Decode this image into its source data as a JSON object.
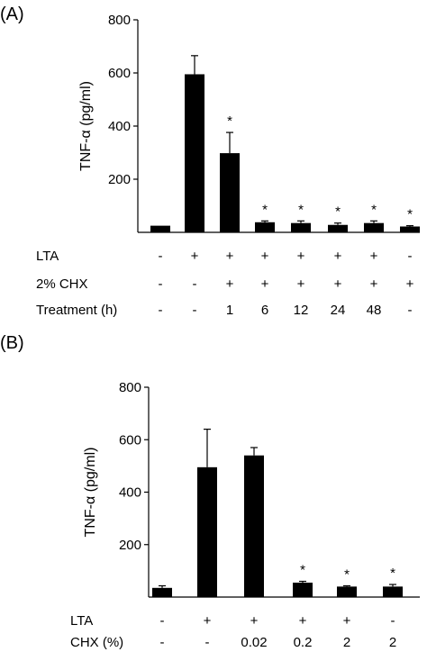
{
  "chart_data": [
    {
      "type": "bar",
      "panel_label": "(A)",
      "ylabel": "TNF-α (pg/ml)",
      "ylim": [
        0,
        800
      ],
      "yticks": [
        200,
        400,
        600,
        800
      ],
      "values": [
        25,
        595,
        298,
        38,
        35,
        28,
        35,
        22
      ],
      "errors": [
        0,
        70,
        78,
        5,
        8,
        7,
        8,
        3
      ],
      "significant": [
        false,
        false,
        true,
        true,
        true,
        true,
        true,
        true
      ],
      "significance_marker": "*",
      "rows": [
        {
          "label": "LTA",
          "cells": [
            "-",
            "+",
            "+",
            "+",
            "+",
            "+",
            "+",
            "-"
          ]
        },
        {
          "label": "2% CHX",
          "cells": [
            "-",
            "-",
            "+",
            "+",
            "+",
            "+",
            "+",
            "+"
          ]
        },
        {
          "label": "Treatment (h)",
          "cells": [
            "-",
            "-",
            "1",
            "6",
            "12",
            "24",
            "48",
            "-"
          ]
        }
      ]
    },
    {
      "type": "bar",
      "panel_label": "(B)",
      "ylabel": "TNF-α (pg/ml)",
      "ylim": [
        0,
        800
      ],
      "yticks": [
        200,
        400,
        600,
        800
      ],
      "values": [
        35,
        495,
        540,
        55,
        40,
        40
      ],
      "errors": [
        8,
        145,
        30,
        5,
        3,
        8
      ],
      "significant": [
        false,
        false,
        false,
        true,
        true,
        true
      ],
      "significance_marker": "*",
      "rows": [
        {
          "label": "LTA",
          "cells": [
            "-",
            "+",
            "+",
            "+",
            "+",
            "-"
          ]
        },
        {
          "label": "CHX (%)",
          "cells": [
            "-",
            "-",
            "0.02",
            "0.2",
            "2",
            "2"
          ]
        }
      ]
    }
  ]
}
